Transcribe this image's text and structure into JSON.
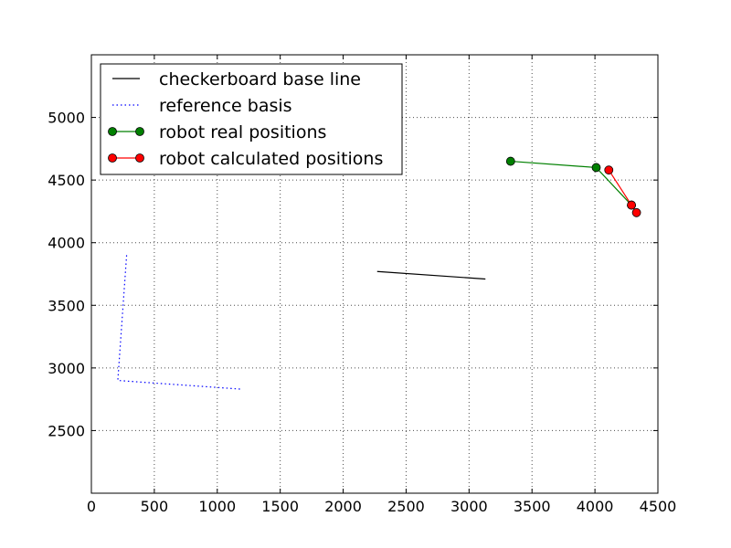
{
  "chart_data": {
    "type": "line",
    "title": "",
    "xlabel": "",
    "ylabel": "",
    "xlim": [
      0,
      4500
    ],
    "ylim": [
      2000,
      5500
    ],
    "grid": true,
    "legend_position": "top-left",
    "x_ticks": [
      {
        "value": 0,
        "label": "0"
      },
      {
        "value": 500,
        "label": "500"
      },
      {
        "value": 1000,
        "label": "1000"
      },
      {
        "value": 1500,
        "label": "1500"
      },
      {
        "value": 2000,
        "label": "2000"
      },
      {
        "value": 2500,
        "label": "2500"
      },
      {
        "value": 3000,
        "label": "3000"
      },
      {
        "value": 3500,
        "label": "3500"
      },
      {
        "value": 4000,
        "label": "4000"
      },
      {
        "value": 4500,
        "label": "4500"
      }
    ],
    "y_ticks": [
      {
        "value": 2500,
        "label": "2500"
      },
      {
        "value": 3000,
        "label": "3000"
      },
      {
        "value": 3500,
        "label": "3500"
      },
      {
        "value": 4000,
        "label": "4000"
      },
      {
        "value": 4500,
        "label": "4500"
      },
      {
        "value": 5000,
        "label": "5000"
      }
    ],
    "series": [
      {
        "name": "checkerboard base line",
        "color": "#000000",
        "line_style": "solid",
        "marker": "none",
        "points": [
          [
            2270,
            3770
          ],
          [
            3130,
            3710
          ]
        ]
      },
      {
        "name": "reference basis",
        "color": "#0000ff",
        "line_style": "dotted",
        "marker": "none",
        "points": [
          [
            280,
            3900
          ],
          [
            210,
            2900
          ],
          [
            1200,
            2830
          ]
        ]
      },
      {
        "name": "robot real positions",
        "color": "#008000",
        "line_style": "solid",
        "marker": "circle",
        "points": [
          [
            3330,
            4650
          ],
          [
            4010,
            4600
          ],
          [
            4290,
            4300
          ]
        ]
      },
      {
        "name": "robot calculated positions",
        "color": "#ff0000",
        "line_style": "solid",
        "marker": "circle",
        "points": [
          [
            4110,
            4580
          ],
          [
            4290,
            4300
          ],
          [
            4330,
            4240
          ]
        ]
      }
    ]
  }
}
